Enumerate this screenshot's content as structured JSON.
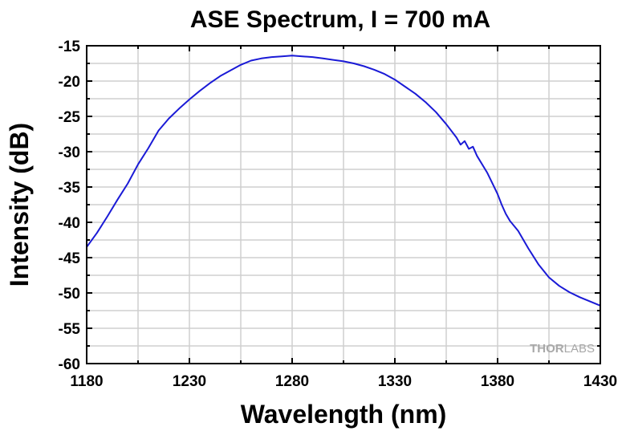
{
  "chart_data": {
    "type": "line",
    "title": "ASE Spectrum, I = 700 mA",
    "xlabel": "Wavelength (nm)",
    "ylabel": "Intensity (dB)",
    "xlim": [
      1180,
      1430
    ],
    "ylim": [
      -60,
      -15
    ],
    "xticks": [
      1180,
      1230,
      1280,
      1330,
      1380,
      1430
    ],
    "yticks": [
      -15,
      -20,
      -25,
      -30,
      -35,
      -40,
      -45,
      -50,
      -55,
      -60
    ],
    "grid": true,
    "legend": "none",
    "line_color": "#1a1ad6",
    "series": [
      {
        "x": [
          1180,
          1185,
          1190,
          1195,
          1200,
          1205,
          1210,
          1215,
          1220,
          1225,
          1230,
          1235,
          1240,
          1245,
          1250,
          1255,
          1260,
          1265,
          1270,
          1275,
          1280,
          1285,
          1290,
          1295,
          1300,
          1305,
          1310,
          1315,
          1320,
          1325,
          1330,
          1335,
          1340,
          1345,
          1350,
          1355,
          1360,
          1362,
          1364,
          1366,
          1368,
          1370,
          1375,
          1378,
          1380,
          1382,
          1384,
          1386,
          1390,
          1395,
          1400,
          1405,
          1410,
          1415,
          1420,
          1425,
          1430
        ],
        "y": [
          -43.5,
          -41.5,
          -39.2,
          -36.8,
          -34.5,
          -31.8,
          -29.5,
          -27.0,
          -25.3,
          -23.9,
          -22.6,
          -21.4,
          -20.3,
          -19.3,
          -18.5,
          -17.7,
          -17.1,
          -16.8,
          -16.6,
          -16.5,
          -16.4,
          -16.5,
          -16.6,
          -16.8,
          -17.0,
          -17.2,
          -17.5,
          -17.9,
          -18.4,
          -19.0,
          -19.8,
          -20.8,
          -21.8,
          -23.0,
          -24.4,
          -26.1,
          -28.0,
          -29.0,
          -28.5,
          -29.6,
          -29.3,
          -30.6,
          -33.0,
          -34.8,
          -36.0,
          -37.5,
          -38.8,
          -39.8,
          -41.2,
          -43.7,
          -46.0,
          -47.8,
          -49.0,
          -49.9,
          -50.6,
          -51.2,
          -51.8
        ]
      }
    ]
  },
  "watermark": {
    "part1": "THOR",
    "part2": "LABS"
  }
}
